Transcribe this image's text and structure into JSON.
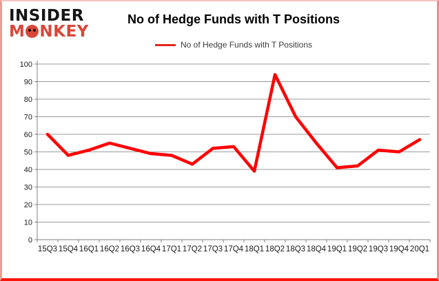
{
  "logo": {
    "line1": "INSIDER",
    "line2_m": "M",
    "line2_rest": "NKEY"
  },
  "header": {
    "title": "No of Hedge Funds with T Positions"
  },
  "legend": {
    "label": "No of Hedge Funds with T Positions",
    "swatch_color": "#e2271c"
  },
  "chart_data": {
    "type": "line",
    "title": "No of Hedge Funds with T Positions",
    "series_name": "No of Hedge Funds with T Positions",
    "categories": [
      "15Q3",
      "15Q4",
      "16Q1",
      "16Q2",
      "16Q3",
      "16Q4",
      "17Q1",
      "17Q2",
      "17Q3",
      "17Q4",
      "18Q1",
      "18Q2",
      "18Q3",
      "18Q4",
      "19Q1",
      "19Q2",
      "19Q3",
      "19Q4",
      "20Q1"
    ],
    "values": [
      60,
      48,
      51,
      55,
      52,
      49,
      48,
      43,
      52,
      53,
      39,
      94,
      70,
      55,
      41,
      42,
      51,
      50,
      57
    ],
    "xlabel": "",
    "ylabel": "",
    "ylim": [
      0,
      100
    ],
    "yticks": [
      0,
      10,
      20,
      30,
      40,
      50,
      60,
      70,
      80,
      90,
      100
    ],
    "grid": true,
    "legend_position": "top-center",
    "line_color": "#fe0000",
    "gridline_color": "#9b9b9b",
    "axis_color": "#7f7f7f",
    "tick_label_color": "#1a1a1a"
  }
}
